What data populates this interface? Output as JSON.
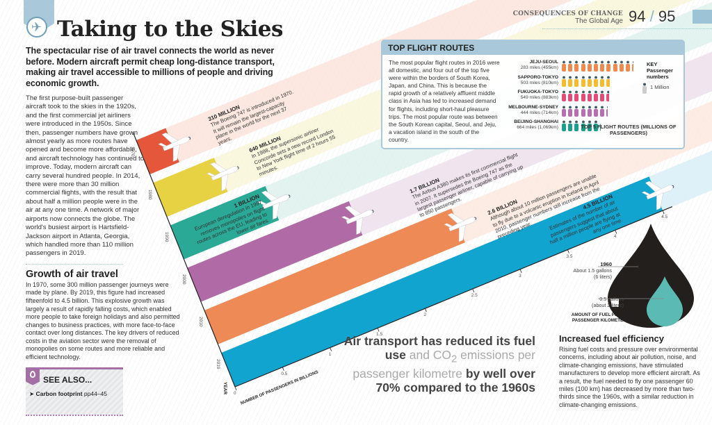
{
  "header": {
    "section": "CONSEQUENCES OF CHANGE",
    "subsection": "The Global Age",
    "page_left": "94",
    "page_sep": "/",
    "page_right": "95"
  },
  "title": "Taking to the Skies",
  "intro": "The spectacular rise of air travel connects the world as never before. Modern aircraft permit cheap long-distance transport, making air travel accessible to millions of people and driving economic growth.",
  "body": "The first purpose-built passenger aircraft took to the skies in the 1920s, and the first commercial jet airliners were introduced in the 1950s. Since then, passenger numbers have grown almost yearly as more routes have opened and become more affordable, and aircraft technology has continued to improve. Today, modern aircraft can carry several hundred people. In 2014, there were more than 30 million commercial flights, with the result that about half a million people were in the air at any one time. A network of major airports now connects the globe. The world's busiest airport is Hartsfield-Jackson airport in Atlanta, Georgia, which handled more than 110 million passengers in 2019.",
  "growth": {
    "heading": "Growth of air travel",
    "text": "In 1970, some 300 million passenger journeys were made by plane. By 2019, this figure had increased fifteenfold to 4.5 billion. This explosive growth was largely a result of rapidly falling costs, which enabled more people to take foreign holidays and also permitted changes to business practices, with more face-to-face contact over long distances. The key drivers of reduced costs in the aviation sector were the removal of monopolies on some routes and more reliable and efficient technology."
  },
  "see_also": {
    "heading": "SEE ALSO...",
    "link": "Carbon footprint",
    "pages": "pp44–45"
  },
  "top_routes": {
    "heading": "TOP FLIGHT ROUTES",
    "text": "The most popular flight routes in 2016 were all domestic, and four out of the top five were within the borders of South Korea, Japan, and China. This is because the rapid growth of a relatively affluent middle class in Asia has led to increased demand for flights, including short-haul pleasure trips. The most popular route was between the South Korean capital, Seoul, and Jeju, a vacation island in the south of the country.",
    "routes": [
      {
        "name": "JEJU-SEOUL",
        "distance": "283 miles (455km)",
        "passengers_millions": 11.3,
        "color": "#ef8a4c"
      },
      {
        "name": "SAPPORO-TOKYO",
        "distance": "503 miles (810km)",
        "passengers_millions": 7.6,
        "color": "#f5bd2e"
      },
      {
        "name": "FUKUOKA-TOKYO",
        "distance": "549 miles (883km)",
        "passengers_millions": 7.5,
        "color": "#e84a78"
      },
      {
        "name": "MELBOURNE-SYDNEY",
        "distance": "444 miles (714km)",
        "passengers_millions": 7.3,
        "color": "#b76db0"
      },
      {
        "name": "BEIJING-SHANGHAI",
        "distance": "664 miles (1,069km)",
        "passengers_millions": 6.2,
        "color": "#1a9f8c"
      }
    ],
    "key_title": "KEY Passenger numbers",
    "key_unit": "1 Million",
    "caption": "TOP 5 FLIGHT ROUTES (MILLIONS OF PASSENGERS)"
  },
  "chart_data": {
    "type": "bar",
    "orientation": "horizontal, skewed perspective",
    "categories": [
      "1970",
      "1980",
      "1990",
      "2000",
      "2010",
      "2019"
    ],
    "values": [
      0.31,
      0.64,
      1.0,
      1.7,
      2.6,
      4.5
    ],
    "colors": [
      "#e4573a",
      "#e6d243",
      "#2aa996",
      "#b06ba6",
      "#ee8a55",
      "#11a4cf"
    ],
    "xlabel": "NUMBER OF PASSENGERS IN BILLIONS",
    "ylabel": "YEAR",
    "xlim": [
      0,
      4.5
    ],
    "x_ticks": [
      "0",
      "0.5",
      "1",
      "1.5",
      "2",
      "2.5",
      "3",
      "3.5",
      "4",
      "4.5"
    ],
    "annotations": [
      {
        "value": "310 MILLION",
        "text": "The Boeing 747 is introduced in 1970. It will remain the largest-capacity plane in the world for the next 37 years."
      },
      {
        "value": "640 MILLION",
        "text": "In 1988, the supersonic airliner Concorde sets a new record London to New York flight time of 2 hours 55 minutes."
      },
      {
        "value": "1 BILLION",
        "text": "European deregulation in 1997 removes monopolies on flight routes across the EU, leading to lower air fares."
      },
      {
        "value": "1.7 BILLION",
        "text": "The Airbus A380 makes its first commercial flight in 2007. It supersedes the Boeing 747 as the largest passenger airliner, capable of carrying up to 850 passengers."
      },
      {
        "value": "2.6 BILLION",
        "text": "Although about 10 million passengers are unable to fly due to a volcanic eruption in Iceland in April 2010, passenger numbers still increase from the preceding year."
      },
      {
        "value": "4.5 BILLION",
        "text": "Estimates of the number of air passengers suggest that about half a million people are flying at any one time."
      }
    ]
  },
  "quote": {
    "p1": "Air transport has reduced its fuel use",
    "p2": " and CO",
    "sub": "2",
    "p3": " emissions per passenger kilometre",
    "p4": " by well over 70% compared to the 1960s"
  },
  "fuel": {
    "y1960": "1960",
    "y1960_a": "About 1.5 gallons",
    "y1960_b": "(6 liters)",
    "y2014": "2014",
    "y2014_a": "0.5 gallons",
    "y2014_b": "(about 2 liters)",
    "caption": "AMOUNT OF FUEL PER 100 PASSENGER KILOMETERS",
    "heading": "Increased fuel efficiency",
    "text": "Rising fuel costs and pressure over environmental concerns, including about air pollution, noise, and climate-changing emissions, have stimulated manufacturers to develop more efficient aircraft. As a result, the fuel needed to fly one passenger 60 miles (100 km) has decreased by more than two-thirds since the 1960s, with a similar reduction in climate-changing emissions.",
    "drop_color": "#231f1c",
    "inner_color": "#5bbab3"
  }
}
